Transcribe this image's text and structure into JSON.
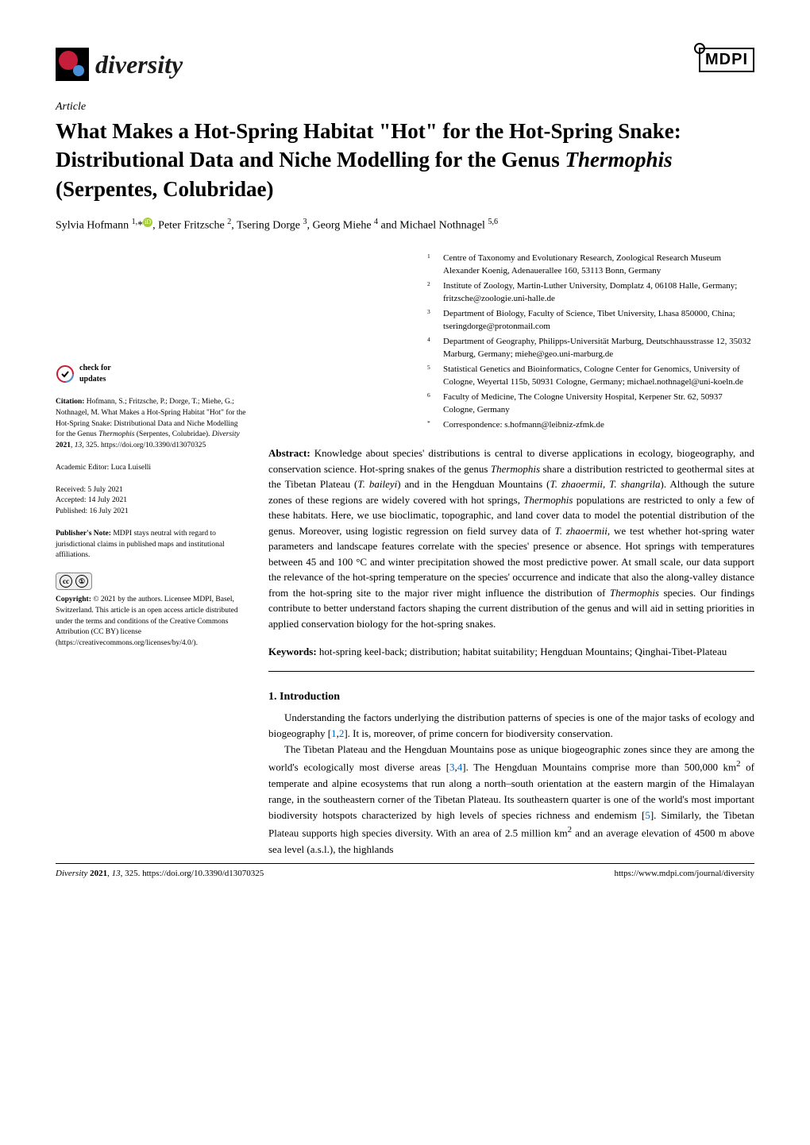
{
  "journal": {
    "name": "diversity",
    "publisher": "MDPI"
  },
  "article_type": "Article",
  "title_html": "What Makes a Hot-Spring Habitat \"Hot\" for the Hot-Spring Snake: Distributional Data and Niche Modelling for the Genus <span class='italic'>Thermophis</span> (Serpentes, Colubridae)",
  "authors_html": "Sylvia Hofmann <sup>1,</sup>*<span class='orcid-icon'>iD</span>, Peter Fritzsche <sup>2</sup>, Tsering Dorge <sup>3</sup>, Georg Miehe <sup>4</sup> and Michael Nothnagel <sup>5,6</sup>",
  "affiliations": [
    {
      "n": "1",
      "text": "Centre of Taxonomy and Evolutionary Research, Zoological Research Museum Alexander Koenig, Adenauerallee 160, 53113 Bonn, Germany"
    },
    {
      "n": "2",
      "text": "Institute of Zoology, Martin-Luther University, Domplatz 4, 06108 Halle, Germany; fritzsche@zoologie.uni-halle.de"
    },
    {
      "n": "3",
      "text": "Department of Biology, Faculty of Science, Tibet University, Lhasa 850000, China; tseringdorge@protonmail.com"
    },
    {
      "n": "4",
      "text": "Department of Geography, Philipps-Universität Marburg, Deutschhausstrasse 12, 35032 Marburg, Germany; miehe@geo.uni-marburg.de"
    },
    {
      "n": "5",
      "text": "Statistical Genetics and Bioinformatics, Cologne Center for Genomics, University of Cologne, Weyertal 115b, 50931 Cologne, Germany; michael.nothnagel@uni-koeln.de"
    },
    {
      "n": "6",
      "text": "Faculty of Medicine, The Cologne University Hospital, Kerpener Str. 62, 50937 Cologne, Germany"
    },
    {
      "n": "*",
      "text": "Correspondence: s.hofmann@leibniz-zfmk.de"
    }
  ],
  "abstract_label": "Abstract:",
  "abstract_html": "Knowledge about species' distributions is central to diverse applications in ecology, biogeography, and conservation science. Hot-spring snakes of the genus <span class='italic'>Thermophis</span> share a distribution restricted to geothermal sites at the Tibetan Plateau (<span class='italic'>T. baileyi</span>) and in the Hengduan Mountains (<span class='italic'>T. zhaoermii</span>, <span class='italic'>T. shangrila</span>). Although the suture zones of these regions are widely covered with hot springs, <span class='italic'>Thermophis</span> populations are restricted to only a few of these habitats. Here, we use bioclimatic, topographic, and land cover data to model the potential distribution of the genus. Moreover, using logistic regression on field survey data of <span class='italic'>T. zhaoermii</span>, we test whether hot-spring water parameters and landscape features correlate with the species' presence or absence. Hot springs with temperatures between 45 and 100 °C and winter precipitation showed the most predictive power. At small scale, our data support the relevance of the hot-spring temperature on the species' occurrence and indicate that also the along-valley distance from the hot-spring site to the major river might influence the distribution of <span class='italic'>Thermophis</span> species. Our findings contribute to better understand factors shaping the current distribution of the genus and will aid in setting priorities in applied conservation biology for the hot-spring snakes.",
  "keywords_label": "Keywords:",
  "keywords": "hot-spring keel-back; distribution; habitat suitability; Hengduan Mountains; Qinghai-Tibet-Plateau",
  "sidebar": {
    "check_updates": "check for updates",
    "citation_label": "Citation:",
    "citation_html": "Hofmann, S.; Fritzsche, P.; Dorge, T.; Miehe, G.; Nothnagel, M. What Makes a Hot-Spring Habitat \"Hot\" for the Hot-Spring Snake: Distributional Data and Niche Modelling for the Genus <span class='italic'>Thermophis</span> (Serpentes, Colubridae). <span class='italic'>Diversity</span> <b>2021</b>, <span class='italic'>13</span>, 325. https://doi.org/10.3390/d13070325",
    "editor_label": "Academic Editor:",
    "editor": "Luca Luiselli",
    "received": "Received: 5 July 2021",
    "accepted": "Accepted: 14 July 2021",
    "published": "Published: 16 July 2021",
    "publisher_note_label": "Publisher's Note:",
    "publisher_note": "MDPI stays neutral with regard to jurisdictional claims in published maps and institutional affiliations.",
    "copyright_label": "Copyright:",
    "copyright": "© 2021 by the authors. Licensee MDPI, Basel, Switzerland. This article is an open access article distributed under the terms and conditions of the Creative Commons Attribution (CC BY) license (https://creativecommons.org/licenses/by/4.0/)."
  },
  "section1": {
    "heading": "1. Introduction",
    "para1_html": "Understanding the factors underlying the distribution patterns of species is one of the major tasks of ecology and biogeography [<span class='ref'>1</span>,<span class='ref'>2</span>]. It is, moreover, of prime concern for biodiversity conservation.",
    "para2_html": "The Tibetan Plateau and the Hengduan Mountains pose as unique biogeographic zones since they are among the world's ecologically most diverse areas [<span class='ref'>3</span>,<span class='ref'>4</span>]. The Hengduan Mountains comprise more than 500,000 km<sup>2</sup> of temperate and alpine ecosystems that run along a north–south orientation at the eastern margin of the Himalayan range, in the southeastern corner of the Tibetan Plateau. Its southeastern quarter is one of the world's most important biodiversity hotspots characterized by high levels of species richness and endemism [<span class='ref'>5</span>]. Similarly, the Tibetan Plateau supports high species diversity. With an area of 2.5 million km<sup>2</sup> and an average elevation of 4500 m above sea level (a.s.l.), the highlands"
  },
  "footer": {
    "left_html": "<span class='italic'>Diversity</span> <b>2021</b>, <span class='italic'>13</span>, 325. https://doi.org/10.3390/d13070325",
    "right": "https://www.mdpi.com/journal/diversity"
  },
  "colors": {
    "ref_link": "#0066cc",
    "orcid": "#a6ce39",
    "logo_red": "#c41e3a",
    "logo_blue": "#4a90d9"
  }
}
